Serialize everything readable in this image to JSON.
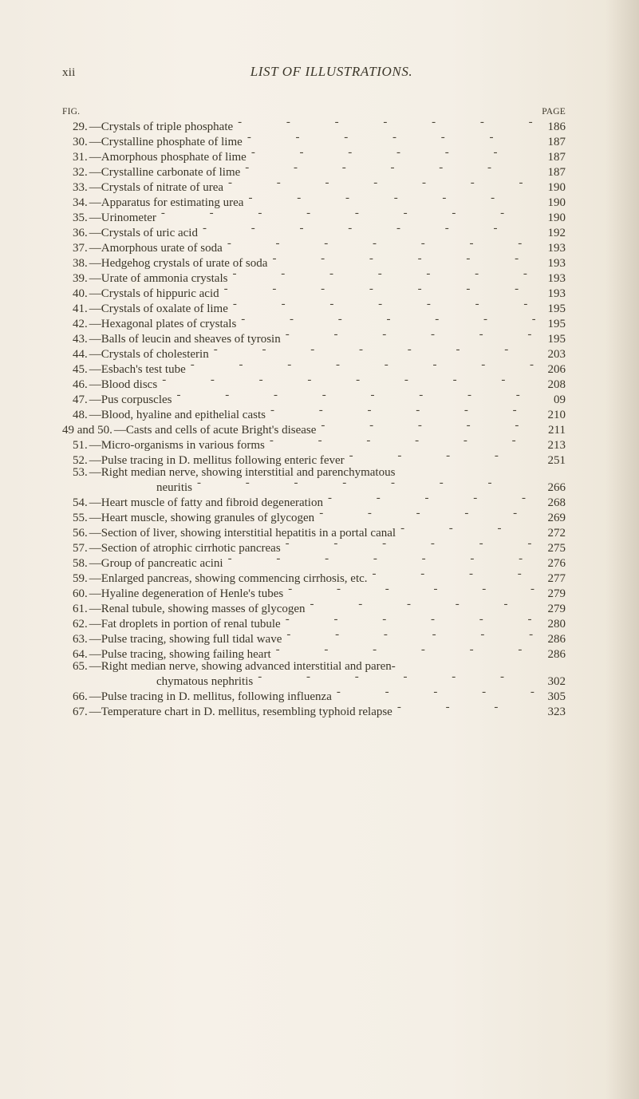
{
  "header": {
    "page_number": "xii",
    "title_italic_prefix": "LIST OF ",
    "title_caps": "ILLUSTRATIONS."
  },
  "column_headers": {
    "left": "FIG.",
    "right": "PAGE"
  },
  "entries": [
    {
      "num": "29",
      "label": "—Crystals of triple phosphate",
      "page": "186"
    },
    {
      "num": "30",
      "label": "—Crystalline phosphate of lime",
      "page": "187"
    },
    {
      "num": "31",
      "label": "—Amorphous phosphate of lime",
      "page": "187"
    },
    {
      "num": "32",
      "label": "—Crystalline carbonate of lime",
      "page": "187"
    },
    {
      "num": "33",
      "label": "—Crystals of nitrate of urea",
      "page": "190"
    },
    {
      "num": "34",
      "label": "—Apparatus for estimating urea",
      "page": "190"
    },
    {
      "num": "35",
      "label": "—Urinometer",
      "page": "190"
    },
    {
      "num": "36",
      "label": "—Crystals of uric acid",
      "page": "192"
    },
    {
      "num": "37",
      "label": "—Amorphous urate of soda",
      "page": "193"
    },
    {
      "num": "38",
      "label": "—Hedgehog crystals of urate of soda",
      "page": "193"
    },
    {
      "num": "39",
      "label": "—Urate of ammonia crystals",
      "page": "193"
    },
    {
      "num": "40",
      "label": "—Crystals of hippuric acid",
      "page": "193"
    },
    {
      "num": "41",
      "label": "—Crystals of oxalate of lime",
      "page": "195"
    },
    {
      "num": "42",
      "label": "—Hexagonal plates of crystals",
      "page": "195"
    },
    {
      "num": "43",
      "label": "—Balls of leucin and sheaves of tyrosin",
      "page": "195"
    },
    {
      "num": "44",
      "label": "—Crystals of cholesterin",
      "page": "203"
    },
    {
      "num": "45",
      "label": "—Esbach's test tube",
      "page": "206"
    },
    {
      "num": "46",
      "label": "—Blood discs",
      "page": "208"
    },
    {
      "num": "47",
      "label": "—Pus corpuscles",
      "page": "09"
    },
    {
      "num": "48",
      "label": "—Blood, hyaline and epithelial casts",
      "page": "210"
    },
    {
      "num": "49 and 50",
      "label": "—Casts and cells of acute Bright's disease",
      "page": "211",
      "wide_num": true
    },
    {
      "num": "51",
      "label": "—Micro-organisms in various forms",
      "page": "213"
    },
    {
      "num": "52",
      "label": "—Pulse tracing in D. mellitus following enteric fever",
      "page": "251"
    },
    {
      "num": "53",
      "label": "—Right median nerve, showing interstitial and parenchymatous",
      "no_page": true,
      "continuation": "neuritis",
      "page": "266"
    },
    {
      "num": "54",
      "label": "—Heart muscle of fatty and fibroid degeneration",
      "page": "268"
    },
    {
      "num": "55",
      "label": "—Heart muscle, showing granules of glycogen",
      "page": "269"
    },
    {
      "num": "56",
      "label": "—Section of liver, showing interstitial hepatitis in a portal canal",
      "page": "272"
    },
    {
      "num": "57",
      "label": "—Section of atrophic cirrhotic pancreas",
      "page": "275"
    },
    {
      "num": "58",
      "label": "—Group of pancreatic acini",
      "page": "276"
    },
    {
      "num": "59",
      "label": "—Enlarged pancreas, showing commencing cirrhosis, etc.",
      "page": "277"
    },
    {
      "num": "60",
      "label": "—Hyaline degeneration of Henle's tubes",
      "page": "279"
    },
    {
      "num": "61",
      "label": "—Renal tubule, showing masses of glycogen",
      "page": "279"
    },
    {
      "num": "62",
      "label": "—Fat droplets in portion of renal tubule",
      "page": "280"
    },
    {
      "num": "63",
      "label": "—Pulse tracing, showing full tidal wave",
      "page": "286"
    },
    {
      "num": "64",
      "label": "—Pulse tracing, showing failing heart",
      "page": "286"
    },
    {
      "num": "65",
      "label": "—Right median nerve, showing advanced interstitial and paren-",
      "no_page": true,
      "continuation": "chymatous nephritis",
      "page": "302"
    },
    {
      "num": "66",
      "label": "—Pulse tracing in D. mellitus, following influenza",
      "page": "305"
    },
    {
      "num": "67",
      "label": "—Temperature chart in D. mellitus, resembling typhoid relapse",
      "page": "323"
    }
  ]
}
